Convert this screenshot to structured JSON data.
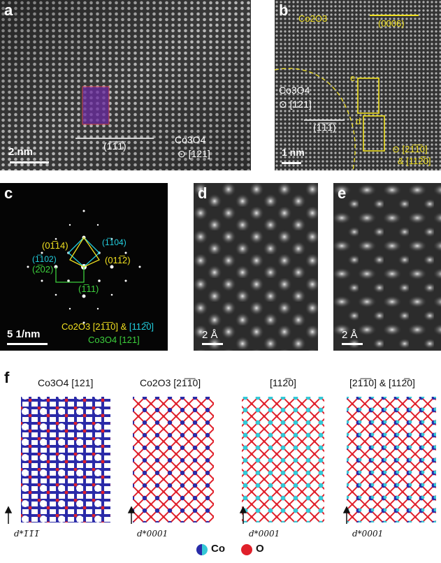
{
  "panels": {
    "a": {
      "label": "a",
      "plane": "(1̅1̅1̅)",
      "material": "Co3O4",
      "zone": "⊙ [121]",
      "scalebar": "2 nm"
    },
    "b": {
      "label": "b",
      "phase_top": "Co2O3",
      "plane_top": "(0006)",
      "material": "Co3O4",
      "zone": "⊙ [121]",
      "plane": "(1̅1̅1̅)",
      "box_e": "e",
      "box_d": "d",
      "zone_right_1": "⊙ [21̅1̅0]",
      "zone_right_2": "& [112̅0]",
      "scalebar": "1 nm"
    },
    "c": {
      "label": "c",
      "spot_0114": "(01̅14)",
      "spot_1104": "(1̅104)",
      "spot_1102": "(1̅102)",
      "spot_0112": "(011̅2)",
      "spot_202": "(2̅02)",
      "spot_111": "(1̅11)",
      "caption_1": "Co2O3 [21̅1̅0]",
      "caption_amp": " & ",
      "caption_2": "[112̅0]",
      "caption_3": "Co3O4 [121]",
      "scalebar": "5 1/nm"
    },
    "d": {
      "label": "d",
      "scalebar": "2 Å"
    },
    "e": {
      "label": "e",
      "scalebar": "2 Å"
    }
  },
  "f": {
    "label": "f",
    "titles": [
      "Co3O4 [121]",
      "Co2O3 [21̅1̅0]",
      "[112̅0]",
      "[21̅1̅0] & [112̅0]"
    ],
    "axes": [
      "d*1̅1̅1̅",
      "d*0001",
      "d*0001",
      "d*0001"
    ],
    "legend": {
      "co": "Co",
      "o": "O"
    }
  },
  "colors": {
    "yellow": "#f0e020",
    "cyan": "#22d0e0",
    "green": "#3ccf3c",
    "co_blue": "#2a2aa8",
    "co_cyan": "#35c8d6",
    "oxygen_red": "#e0202a"
  }
}
